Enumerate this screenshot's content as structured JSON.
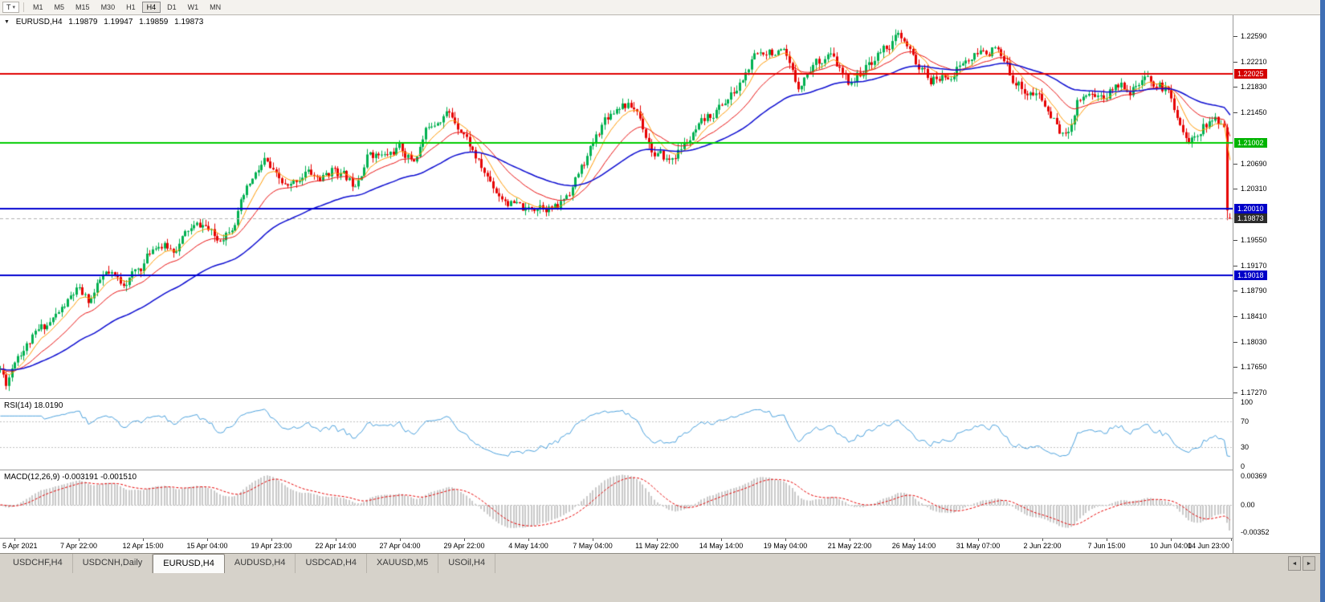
{
  "toolbar": {
    "template_button": "T",
    "caret_icon": "▾",
    "timeframes": [
      "M1",
      "M5",
      "M15",
      "M30",
      "H1",
      "H4",
      "D1",
      "W1",
      "MN"
    ],
    "active_timeframe": "H4"
  },
  "chart": {
    "header": {
      "dropdown_icon": "▼",
      "symbol": "EURUSD,H4",
      "open": "1.19879",
      "high": "1.19947",
      "low": "1.19859",
      "close": "1.19873"
    }
  },
  "time_axis": {
    "labels": [
      "5 Apr 2021",
      "7 Apr 22:00",
      "12 Apr 15:00",
      "15 Apr 04:00",
      "19 Apr 23:00",
      "22 Apr 14:00",
      "27 Apr 04:00",
      "29 Apr 22:00",
      "4 May 14:00",
      "7 May 04:00",
      "11 May 22:00",
      "14 May 14:00",
      "19 May 04:00",
      "21 May 22:00",
      "26 May 14:00",
      "31 May 07:00",
      "2 Jun 22:00",
      "7 Jun 15:00",
      "10 Jun 04:00",
      "14 Jun 23:00"
    ]
  },
  "tabs": {
    "items": [
      "USDCHF,H4",
      "USDCNH,Daily",
      "EURUSD,H4",
      "AUDUSD,H4",
      "USDCAD,H4",
      "XAUUSD,M5",
      "USOil,H4"
    ],
    "active": "EURUSD,H4",
    "scroll_left_icon": "◄",
    "scroll_right_icon": "►"
  },
  "colors": {
    "window_border": "#3f6fb5",
    "panel_border": "#9a9a9a",
    "tabbar_bg": "#d6d2ca"
  },
  "chart_data": {
    "type": "candlestick",
    "symbol": "EURUSD",
    "timeframe": "H4",
    "x_range": [
      "5 Apr 2021",
      "16 Jun 2021"
    ],
    "y_range": [
      1.17188,
      1.22901
    ],
    "price_ticks": [
      "1.22590",
      "1.22210",
      "1.21830",
      "1.21450",
      "1.20690",
      "1.20310",
      "1.19550",
      "1.19170",
      "1.18790",
      "1.18410",
      "1.18030",
      "1.17650",
      "1.17270"
    ],
    "candle_count": 420,
    "seed": 11,
    "noise": 0.0016,
    "wick": 0.0009,
    "up_color": "#00b050",
    "down_color": "#e60000",
    "close_path_anchors": [
      [
        0.0,
        1.1762
      ],
      [
        0.005,
        1.1742
      ],
      [
        0.013,
        1.1785
      ],
      [
        0.036,
        1.1825
      ],
      [
        0.049,
        1.1848
      ],
      [
        0.062,
        1.1878
      ],
      [
        0.072,
        1.1862
      ],
      [
        0.085,
        1.1902
      ],
      [
        0.098,
        1.189
      ],
      [
        0.114,
        1.1912
      ],
      [
        0.127,
        1.1952
      ],
      [
        0.14,
        1.194
      ],
      [
        0.153,
        1.1968
      ],
      [
        0.166,
        1.1978
      ],
      [
        0.176,
        1.1952
      ],
      [
        0.189,
        1.1982
      ],
      [
        0.202,
        1.2032
      ],
      [
        0.215,
        1.2072
      ],
      [
        0.225,
        1.2042
      ],
      [
        0.235,
        1.2028
      ],
      [
        0.248,
        1.2058
      ],
      [
        0.261,
        1.2045
      ],
      [
        0.272,
        1.2062
      ],
      [
        0.287,
        1.2038
      ],
      [
        0.3,
        1.2088
      ],
      [
        0.313,
        1.2078
      ],
      [
        0.324,
        1.2092
      ],
      [
        0.336,
        1.2072
      ],
      [
        0.349,
        1.2128
      ],
      [
        0.362,
        1.2148
      ],
      [
        0.376,
        1.2122
      ],
      [
        0.391,
        1.2062
      ],
      [
        0.404,
        1.2028
      ],
      [
        0.417,
        1.2008
      ],
      [
        0.428,
        1.1996
      ],
      [
        0.44,
        1.2012
      ],
      [
        0.453,
        1.2
      ],
      [
        0.466,
        1.2038
      ],
      [
        0.48,
        1.2088
      ],
      [
        0.492,
        1.2138
      ],
      [
        0.505,
        1.2162
      ],
      [
        0.518,
        1.2148
      ],
      [
        0.532,
        1.2082
      ],
      [
        0.544,
        1.2072
      ],
      [
        0.557,
        1.2098
      ],
      [
        0.57,
        1.2122
      ],
      [
        0.584,
        1.2152
      ],
      [
        0.599,
        1.2178
      ],
      [
        0.612,
        1.2222
      ],
      [
        0.625,
        1.2242
      ],
      [
        0.637,
        1.2228
      ],
      [
        0.648,
        1.2182
      ],
      [
        0.661,
        1.2218
      ],
      [
        0.674,
        1.2232
      ],
      [
        0.689,
        1.2188
      ],
      [
        0.704,
        1.2212
      ],
      [
        0.717,
        1.2238
      ],
      [
        0.73,
        1.2258
      ],
      [
        0.741,
        1.2228
      ],
      [
        0.756,
        1.2192
      ],
      [
        0.769,
        1.2198
      ],
      [
        0.782,
        1.2218
      ],
      [
        0.793,
        1.2228
      ],
      [
        0.808,
        1.2242
      ],
      [
        0.821,
        1.2202
      ],
      [
        0.834,
        1.2178
      ],
      [
        0.845,
        1.2168
      ],
      [
        0.857,
        1.2132
      ],
      [
        0.867,
        1.2106
      ],
      [
        0.876,
        1.2166
      ],
      [
        0.886,
        1.2178
      ],
      [
        0.897,
        1.2168
      ],
      [
        0.909,
        1.2188
      ],
      [
        0.922,
        1.2182
      ],
      [
        0.935,
        1.2192
      ],
      [
        0.949,
        1.2178
      ],
      [
        0.958,
        1.2142
      ],
      [
        0.967,
        1.2096
      ],
      [
        0.977,
        1.2126
      ],
      [
        0.99,
        1.2132
      ],
      [
        0.996,
        1.2124
      ],
      [
        1.0,
        1.1988
      ]
    ],
    "crash_candle": {
      "open": 1.2123,
      "high": 1.2128,
      "low": 1.19844,
      "close": 1.1999
    },
    "last_candle": {
      "open": 1.19879,
      "high": 1.19947,
      "low": 1.19859,
      "close": 1.19873
    },
    "moving_averages": [
      {
        "period": 8,
        "color": "#ff9900",
        "width": 1
      },
      {
        "period": 21,
        "color": "#e81010",
        "width": 1
      },
      {
        "period": 55,
        "color": "#0b0bd0",
        "width": 1.5
      }
    ],
    "horizontal_levels": [
      {
        "price": 1.22025,
        "color": "#e00000",
        "label": "1.22025",
        "label_bg": "#d40000",
        "label_fg": "#ffffff"
      },
      {
        "price": 1.21002,
        "color": "#00cc00",
        "label": "1.21002",
        "label_bg": "#00b400",
        "label_fg": "#ffffff"
      },
      {
        "price": 1.2001,
        "color": "#0000d0",
        "label": "1.20010",
        "label_bg": "#0000c8",
        "label_fg": "#ffffff"
      },
      {
        "price": 1.19018,
        "color": "#0000d0",
        "label": "1.19018",
        "label_bg": "#0000c8",
        "label_fg": "#ffffff"
      }
    ],
    "bid_line": {
      "price": 1.19873,
      "color": "#b0b0b0",
      "label": "1.19873",
      "label_bg": "#2b2b2b",
      "label_fg": "#ffffff"
    },
    "rsi": {
      "period": 14,
      "label": "RSI(14) 18.0190",
      "value": 18.019,
      "color": "#4aa0dc",
      "levels": [
        100,
        70,
        30,
        0
      ],
      "level_lines": [
        70,
        30
      ]
    },
    "macd": {
      "label": "MACD(12,26,9) -0.003191 -0.001510",
      "fast": 12,
      "slow": 26,
      "signal_period": 9,
      "values": [
        -0.003191,
        -0.00151
      ],
      "axis_ticks": [
        "0.00369",
        "0.00",
        "-0.00352"
      ],
      "scale_max": 0.00369,
      "scale_min": -0.00352,
      "histogram_color": "#c9c9c9",
      "signal_color": "#e60000"
    }
  }
}
